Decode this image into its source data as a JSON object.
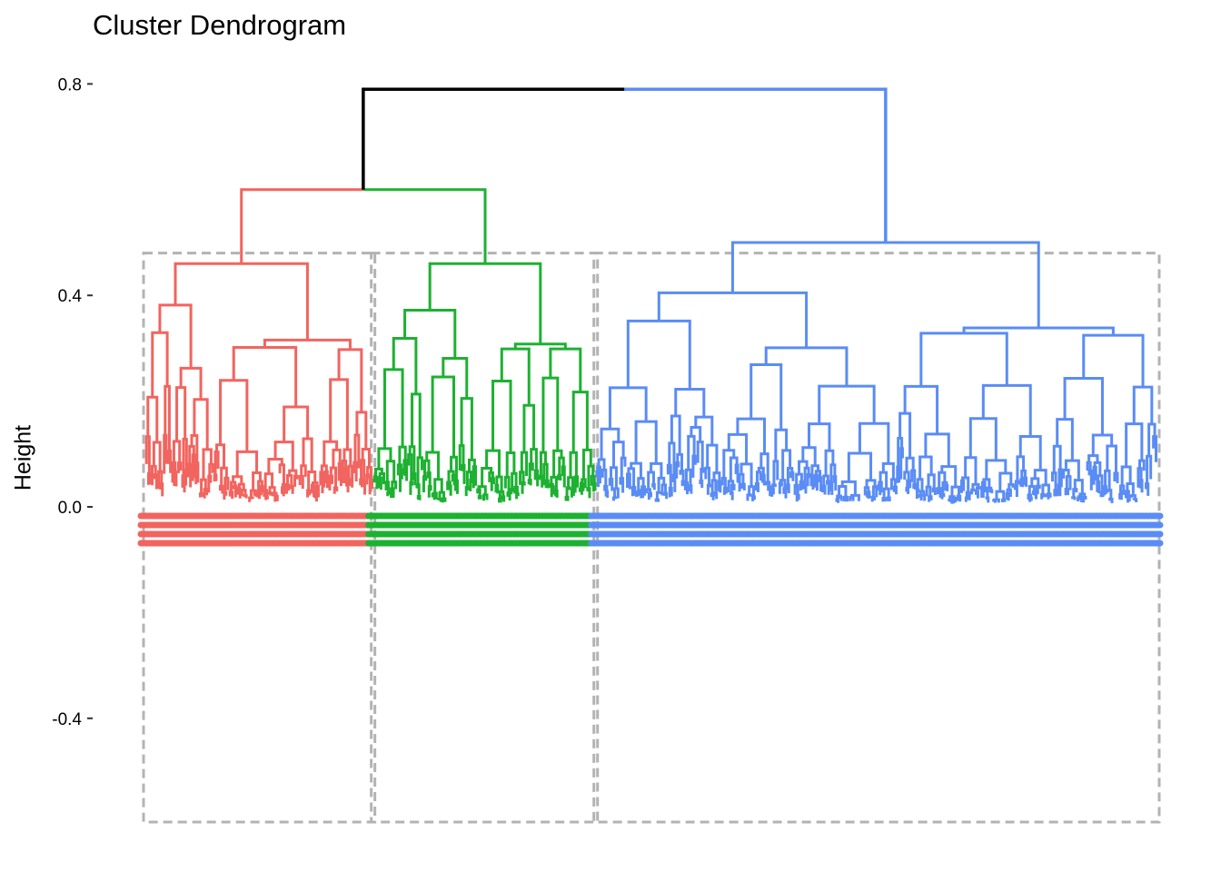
{
  "chart_data": {
    "type": "dendrogram",
    "title": "Cluster Dendrogram",
    "xlabel": "",
    "ylabel": "Height",
    "ylim": [
      -0.6,
      0.82
    ],
    "yticks": [
      {
        "value": 0.8,
        "label": "0.8"
      },
      {
        "value": 0.4,
        "label": "0.4"
      },
      {
        "value": 0.0,
        "label": "0.0"
      },
      {
        "value": -0.4,
        "label": "-0.4"
      }
    ],
    "grid": false,
    "root_height": 0.79,
    "root_color": "#000000",
    "cut_height": 0.48,
    "box_color": "#b3b3b3",
    "clusters": [
      {
        "id": 1,
        "color": "#F2645F",
        "leaf_share": 0.225,
        "merge_height": 0.6,
        "top_split": 0.46,
        "split_heights": [
          0.38,
          0.33,
          0.23,
          0.13
        ]
      },
      {
        "id": 2,
        "color": "#1DB131",
        "leaf_share": 0.22,
        "merge_height": 0.6,
        "top_split": 0.46,
        "split_heights": [
          0.38,
          0.32,
          0.26,
          0.12
        ]
      },
      {
        "id": 3,
        "color": "#5A8CF5",
        "leaf_share": 0.555,
        "merge_height": 0.79,
        "top_split": 0.5,
        "split_heights": [
          0.46,
          0.34,
          0.26,
          0.17
        ]
      }
    ],
    "merges": [
      {
        "left_cluster": 1,
        "right_cluster": 2,
        "height": 0.6
      },
      {
        "left_cluster": "1+2",
        "right_cluster": 3,
        "height": 0.79
      }
    ]
  }
}
